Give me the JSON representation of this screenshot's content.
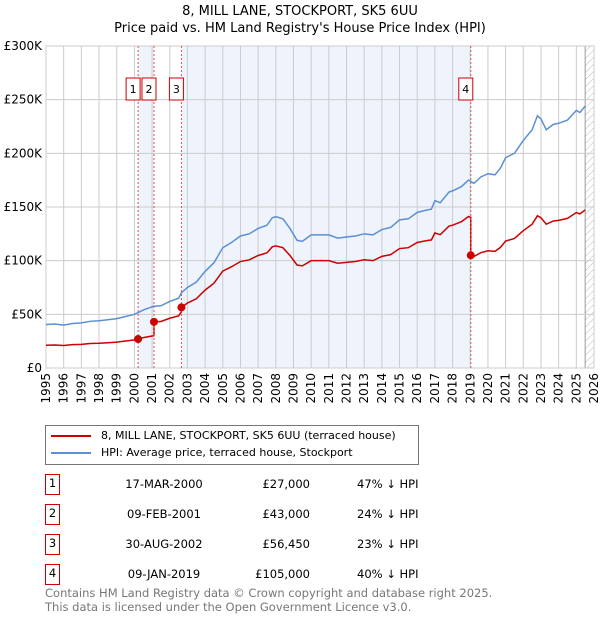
{
  "chart_data": {
    "type": "line",
    "title": "8, MILL LANE, STOCKPORT, SK5 6UU",
    "subtitle": "Price paid vs. HM Land Registry's House Price Index (HPI)",
    "xlim": [
      1995,
      2026
    ],
    "ylim": [
      0,
      300000
    ],
    "x_ticks": [
      "1995",
      "1996",
      "1997",
      "1998",
      "1999",
      "2000",
      "2001",
      "2002",
      "2003",
      "2004",
      "2005",
      "2006",
      "2007",
      "2008",
      "2009",
      "2010",
      "2011",
      "2012",
      "2013",
      "2014",
      "2015",
      "2016",
      "2017",
      "2018",
      "2019",
      "2020",
      "2021",
      "2022",
      "2023",
      "2024",
      "2025",
      "2026"
    ],
    "y_ticks": [
      {
        "v": 0,
        "label": "£0"
      },
      {
        "v": 50000,
        "label": "£50K"
      },
      {
        "v": 100000,
        "label": "£100K"
      },
      {
        "v": 150000,
        "label": "£150K"
      },
      {
        "v": 200000,
        "label": "£200K"
      },
      {
        "v": 250000,
        "label": "£250K"
      },
      {
        "v": 300000,
        "label": "£300K"
      }
    ],
    "grid": true,
    "forecast_hatch_from": 2025.5,
    "colors": {
      "property": "#cc0000",
      "hpi": "#5b8fd6",
      "shade": "#eef3fc"
    },
    "hpi_series": {
      "name": "HPI: Average price, terraced house, Stockport",
      "x": [
        1995,
        1995.5,
        1996,
        1996.5,
        1997,
        1997.5,
        1998,
        1998.5,
        1999,
        1999.5,
        2000,
        2000.2,
        2000.5,
        2001,
        2001.1,
        2001.5,
        2002,
        2002.5,
        2002.66,
        2003,
        2003.5,
        2004,
        2004.5,
        2005,
        2005.5,
        2006,
        2006.5,
        2007,
        2007.5,
        2007.8,
        2008,
        2008.4,
        2008.8,
        2009.2,
        2009.5,
        2010,
        2010.5,
        2011,
        2011.5,
        2012,
        2012.5,
        2013,
        2013.5,
        2014,
        2014.5,
        2015,
        2015.5,
        2016,
        2016.5,
        2016.8,
        2017,
        2017.3,
        2017.8,
        2018,
        2018.5,
        2018.9,
        2019.03,
        2019.2,
        2019.6,
        2020,
        2020.4,
        2020.7,
        2021,
        2021.5,
        2022,
        2022.5,
        2022.8,
        2023,
        2023.3,
        2023.7,
        2024,
        2024.5,
        2025,
        2025.2,
        2025.5
      ],
      "y": [
        40500,
        41000,
        40000,
        41500,
        42000,
        43500,
        44000,
        45000,
        46000,
        48000,
        50000,
        51500,
        54000,
        57000,
        57500,
        58000,
        62000,
        65000,
        70000,
        75000,
        80000,
        90000,
        98000,
        112000,
        117000,
        123000,
        125000,
        130000,
        133000,
        140000,
        141000,
        139000,
        130000,
        119000,
        118000,
        124000,
        124000,
        124000,
        121000,
        122000,
        123000,
        125000,
        124000,
        129000,
        131000,
        138000,
        139000,
        145000,
        147000,
        148000,
        156000,
        154000,
        164000,
        165000,
        169000,
        175000,
        174000,
        172000,
        178000,
        181000,
        180000,
        186000,
        196000,
        200000,
        212000,
        222000,
        235000,
        232000,
        222000,
        227000,
        228000,
        231000,
        240000,
        238000,
        244000
      ]
    },
    "property_series": {
      "name": "8, MILL LANE, STOCKPORT, SK5 6UU (terraced house)"
    },
    "sales": [
      {
        "n": "1",
        "x": 2000.21,
        "date": "17-MAR-2000",
        "price": 27000,
        "price_label": "£27,000",
        "hpi": "47% ↓ HPI"
      },
      {
        "n": "2",
        "x": 2001.11,
        "date": "09-FEB-2001",
        "price": 43000,
        "price_label": "£43,000",
        "hpi": "24% ↓ HPI"
      },
      {
        "n": "3",
        "x": 2002.66,
        "date": "30-AUG-2002",
        "price": 56450,
        "price_label": "£56,450",
        "hpi": "23% ↓ HPI"
      },
      {
        "n": "4",
        "x": 2019.03,
        "date": "09-JAN-2019",
        "price": 105000,
        "price_label": "£105,000",
        "hpi": "40% ↓ HPI"
      }
    ]
  },
  "legend": {
    "property": "8, MILL LANE, STOCKPORT, SK5 6UU (terraced house)",
    "hpi": "HPI: Average price, terraced house, Stockport"
  },
  "footer": {
    "line1": "Contains HM Land Registry data © Crown copyright and database right 2025.",
    "line2": "This data is licensed under the Open Government Licence v3.0."
  }
}
